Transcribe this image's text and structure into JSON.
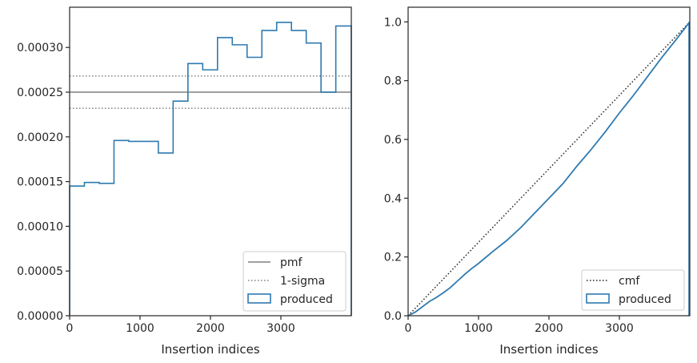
{
  "colors": {
    "produced": "#2f7ab0",
    "reference": "#808080",
    "cmf": "#222222",
    "axis": "#262626"
  },
  "chart_data": [
    {
      "type": "step",
      "xlabel": "Insertion indices",
      "xlim": [
        0,
        4000
      ],
      "ylim": [
        0,
        0.000345
      ],
      "xticks": [
        0,
        1000,
        2000,
        3000
      ],
      "yticks": [
        0,
        5e-05,
        0.0001,
        0.00015,
        0.0002,
        0.00025,
        0.0003
      ],
      "ytick_labels": [
        "0.00000",
        "0.00005",
        "0.00010",
        "0.00015",
        "0.00020",
        "0.00025",
        "0.00030"
      ],
      "legend_position": "lower right",
      "reference_lines": [
        {
          "name": "pmf",
          "style": "solid",
          "y": 0.00025
        },
        {
          "name": "1-sigma",
          "style": "dotted",
          "y": [
            0.000232,
            0.000268
          ]
        }
      ],
      "series": [
        {
          "name": "produced",
          "bin_edges": [
            0,
            210,
            420,
            630,
            840,
            1050,
            1260,
            1470,
            1680,
            1890,
            2100,
            2310,
            2520,
            2730,
            2940,
            3150,
            3360,
            3570,
            3780,
            4000
          ],
          "values": [
            0.000145,
            0.000149,
            0.000148,
            0.000196,
            0.000195,
            0.000195,
            0.000182,
            0.00024,
            0.000282,
            0.000275,
            0.000311,
            0.000303,
            0.000289,
            0.000319,
            0.000328,
            0.000319,
            0.000305,
            0.00025,
            0.000324
          ]
        }
      ]
    },
    {
      "type": "line",
      "xlabel": "Insertion indices",
      "xlim": [
        0,
        4000
      ],
      "ylim": [
        0,
        1.05
      ],
      "xticks": [
        0,
        1000,
        2000,
        3000
      ],
      "yticks": [
        0,
        0.2,
        0.4,
        0.6,
        0.8,
        1.0
      ],
      "ytick_labels": [
        "0.0",
        "0.2",
        "0.4",
        "0.6",
        "0.8",
        "1.0"
      ],
      "legend_position": "lower right",
      "series": [
        {
          "name": "cmf",
          "style": "dotted",
          "x": [
            0,
            4000
          ],
          "y": [
            0,
            1.0
          ]
        },
        {
          "name": "produced",
          "style": "solid",
          "x": [
            0,
            100,
            200,
            300,
            400,
            500,
            600,
            700,
            800,
            900,
            1000,
            1200,
            1400,
            1600,
            1800,
            2000,
            2200,
            2400,
            2600,
            2800,
            3000,
            3200,
            3400,
            3600,
            3800,
            4000
          ],
          "y": [
            0,
            0.012,
            0.03,
            0.048,
            0.062,
            0.078,
            0.096,
            0.118,
            0.14,
            0.16,
            0.178,
            0.218,
            0.256,
            0.3,
            0.35,
            0.4,
            0.45,
            0.51,
            0.566,
            0.626,
            0.69,
            0.75,
            0.814,
            0.878,
            0.938,
            1.0
          ]
        }
      ]
    }
  ]
}
